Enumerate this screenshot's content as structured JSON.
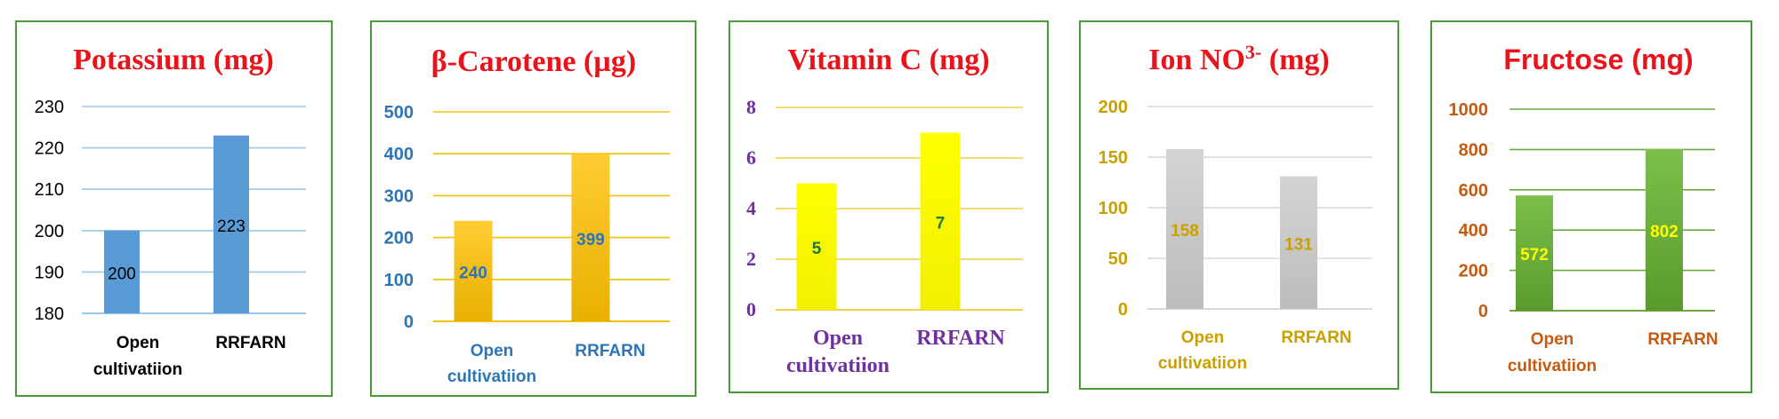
{
  "chart_data": [
    {
      "type": "bar",
      "title": "Potassium (mg)",
      "categories": [
        "Open cultivatiion",
        "RRFARN"
      ],
      "values": [
        200,
        223
      ],
      "ylim": [
        180,
        230
      ],
      "yticks": [
        180,
        190,
        200,
        210,
        220,
        230
      ],
      "xlabel": "",
      "ylabel": "",
      "grid": true,
      "colors": {
        "title": "#e8141c",
        "tick": "#000000",
        "category": "#000000",
        "grid": "#9cc8e8",
        "bar": "#5b9bd5",
        "bar_dark": "#5b9bd5",
        "label": "#000000"
      }
    },
    {
      "type": "bar",
      "title": "β-Carotene (µg)",
      "categories": [
        "Open cultivatiion",
        "RRFARN"
      ],
      "values": [
        240,
        399
      ],
      "ylim": [
        0,
        500
      ],
      "yticks": [
        0,
        100,
        200,
        300,
        400,
        500
      ],
      "xlabel": "",
      "ylabel": "",
      "grid": true,
      "colors": {
        "title": "#e8141c",
        "tick": "#2e75b6",
        "category": "#2e75b6",
        "grid": "#f2c200",
        "bar": "#ffcc33",
        "bar_dark": "#e8b000",
        "label": "#2e75b6"
      }
    },
    {
      "type": "bar",
      "title": "Vitamin C (mg)",
      "categories": [
        "Open cultivatiion",
        "RRFARN"
      ],
      "values": [
        5,
        7
      ],
      "ylim": [
        0,
        8
      ],
      "yticks": [
        0,
        2,
        4,
        6,
        8
      ],
      "xlabel": "",
      "ylabel": "",
      "grid": true,
      "colors": {
        "title": "#e8141c",
        "tick": "#7030a0",
        "category": "#7030a0",
        "grid": "#f2d040",
        "bar": "#ffff00",
        "bar_dark": "#f2f000",
        "label": "#1e7a3a"
      }
    },
    {
      "type": "bar",
      "title": "Ion NO",
      "title_superscript": "3-",
      "title_unit": " (mg)",
      "categories": [
        "Open cultivatiion",
        "RRFARN"
      ],
      "values": [
        158,
        131
      ],
      "ylim": [
        0,
        200
      ],
      "yticks": [
        0,
        50,
        100,
        150,
        200
      ],
      "xlabel": "",
      "ylabel": "",
      "grid": true,
      "colors": {
        "title": "#e8141c",
        "tick": "#c9a000",
        "category": "#c9a000",
        "grid": "#d9d9d9",
        "bar": "#d4d4d4",
        "bar_dark": "#bcbcbc",
        "label": "#c9a000"
      }
    },
    {
      "type": "bar",
      "title": "Fructose (mg)",
      "categories": [
        "Open cultivatiion",
        "RRFARN"
      ],
      "values": [
        572,
        802
      ],
      "ylim": [
        0,
        1000
      ],
      "yticks": [
        0,
        200,
        400,
        600,
        800,
        1000
      ],
      "xlabel": "",
      "ylabel": "",
      "grid": true,
      "colors": {
        "title": "#e8141c",
        "tick": "#c55a11",
        "category": "#c55a11",
        "grid": "#6aaa3a",
        "bar": "#7cbf4a",
        "bar_dark": "#5a9a2c",
        "label": "#ffff00"
      }
    }
  ]
}
